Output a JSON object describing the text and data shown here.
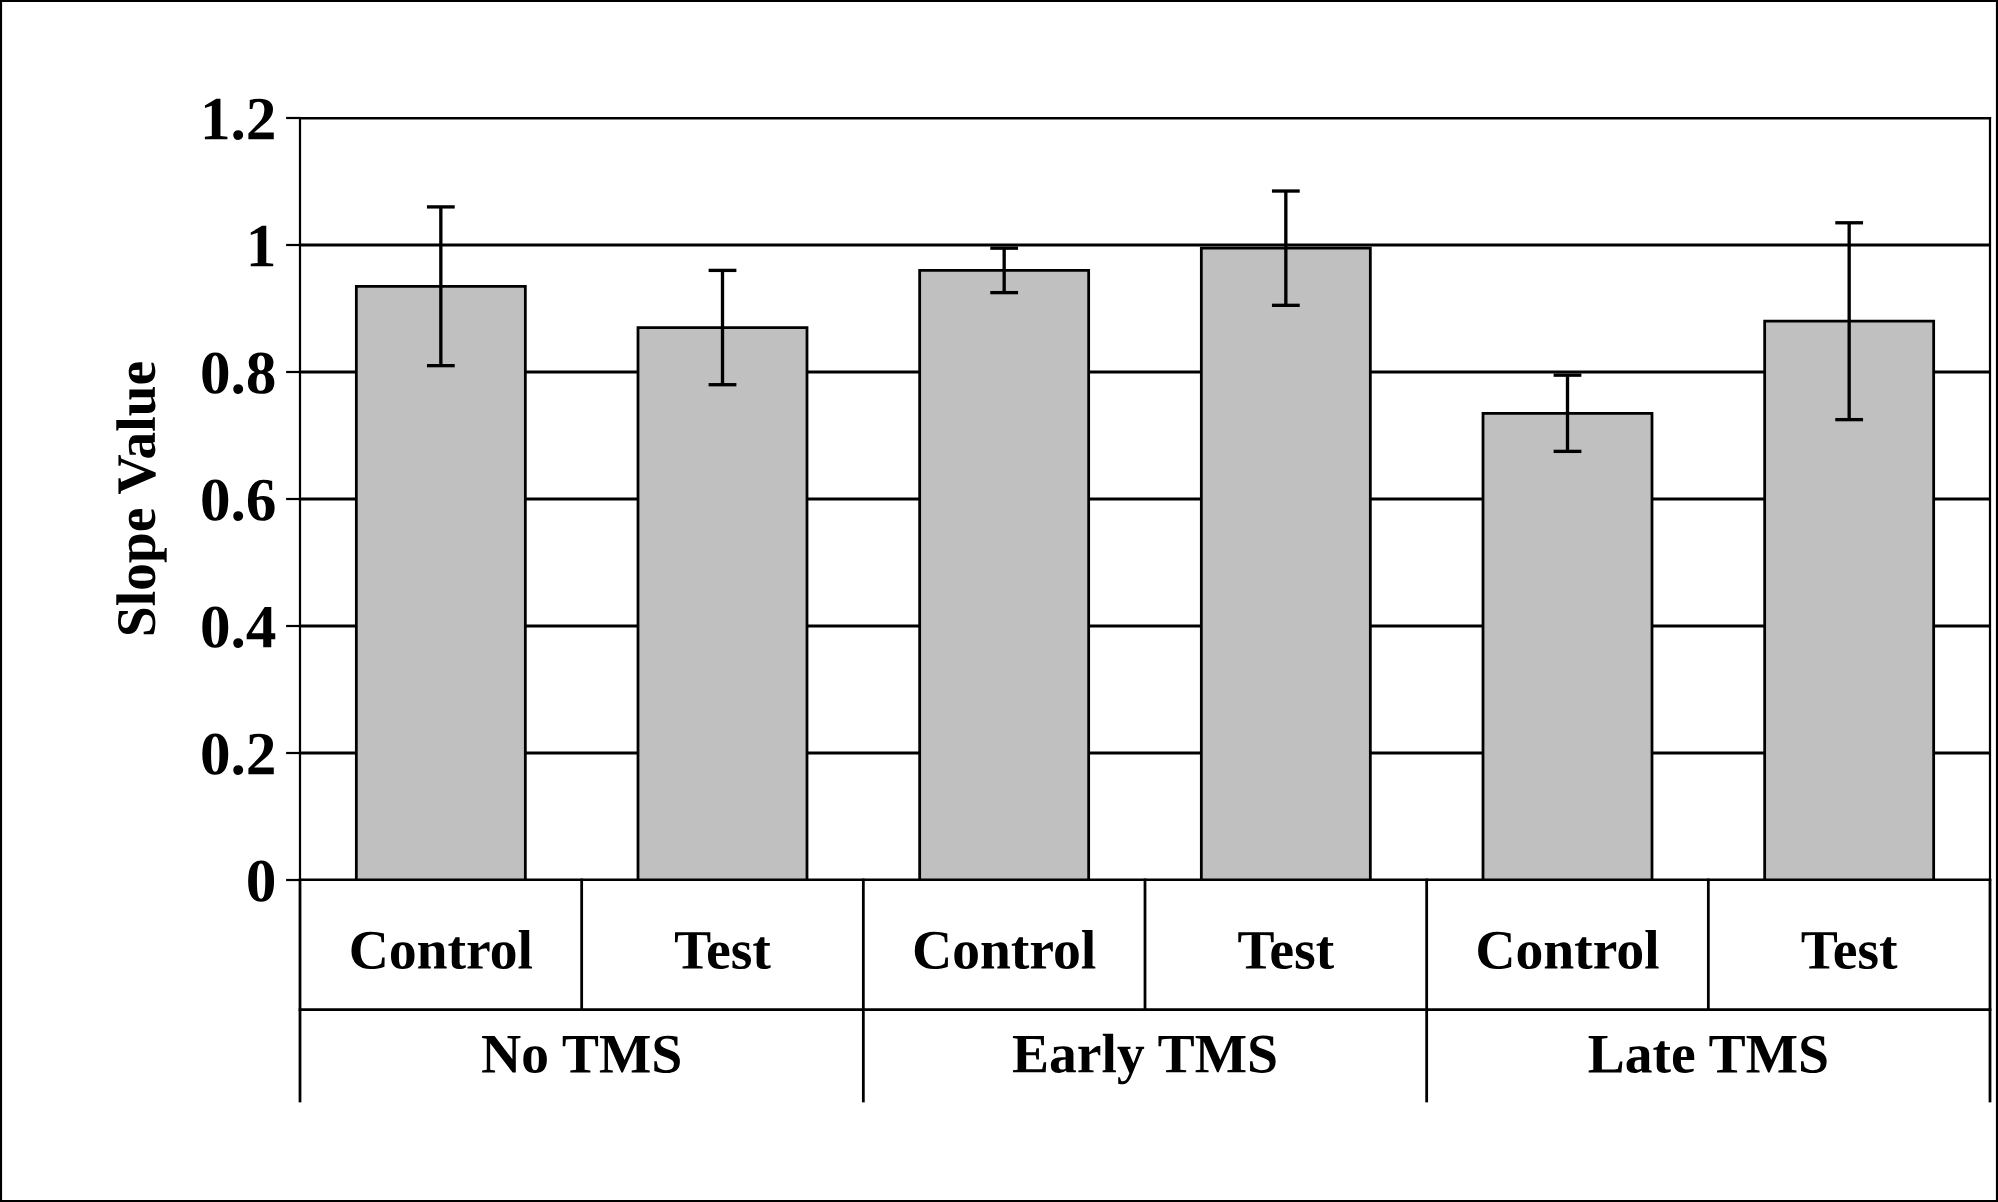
{
  "chart_data": {
    "type": "bar",
    "ylabel": "Slope Value",
    "categories": [
      "Control",
      "Test",
      "Control",
      "Test",
      "Control",
      "Test"
    ],
    "values": [
      0.935,
      0.87,
      0.96,
      0.995,
      0.735,
      0.88
    ],
    "errors": [
      0.125,
      0.09,
      0.035,
      0.09,
      0.06,
      0.155
    ],
    "color": "#c0c0c0",
    "annotations": [
      "No TMS",
      "Early TMS",
      "Late TMS"
    ],
    "ylim": [
      0,
      1.2
    ],
    "yticks": [
      0,
      0.2,
      0.4,
      0.6,
      0.8,
      1,
      1.2
    ],
    "grid": "y"
  }
}
